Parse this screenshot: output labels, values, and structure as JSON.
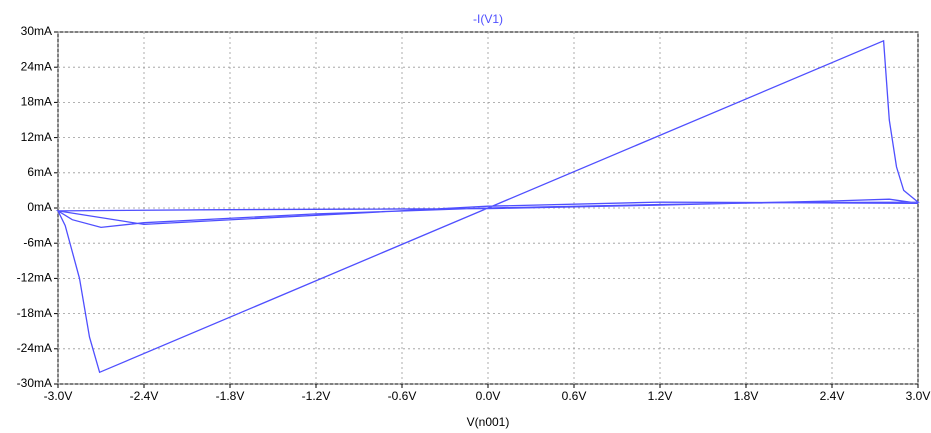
{
  "chart_data": {
    "type": "line",
    "x_label": "V(n001)",
    "x": [
      -3.0,
      -2.95,
      -2.85,
      -2.78,
      -2.71,
      0,
      2.76,
      2.8,
      2.85,
      2.9,
      3.0,
      2.0,
      1.2,
      0,
      -1.2,
      -2.4,
      -2.7,
      -2.9,
      -3.0,
      -2.0,
      -1.0,
      0,
      1.2,
      2.4,
      2.8,
      3.0,
      1.2,
      0,
      -2.4,
      -3.0
    ],
    "series": [
      {
        "name": "-I(V1)",
        "color": "#4f4fff",
        "values": [
          -0.5,
          -3,
          -12,
          -22,
          -28,
          0,
          28.5,
          15,
          7,
          3,
          1,
          0.9,
          0.6,
          0,
          -1,
          -2.5,
          -3.3,
          -2,
          -0.5,
          -0.3,
          -0.2,
          -0.1,
          0.5,
          1.2,
          1.5,
          0.8,
          1,
          0.3,
          -2.8,
          -0.5
        ]
      }
    ],
    "xlim": [
      -3,
      3
    ],
    "xticks": [
      {
        "value": -3,
        "label": "-3.0V"
      },
      {
        "value": -2.4,
        "label": "-2.4V"
      },
      {
        "value": -1.8,
        "label": "-1.8V"
      },
      {
        "value": -1.2,
        "label": "-1.2V"
      },
      {
        "value": -0.6,
        "label": "-0.6V"
      },
      {
        "value": 0,
        "label": "0.0V"
      },
      {
        "value": 0.6,
        "label": "0.6V"
      },
      {
        "value": 1.2,
        "label": "1.2V"
      },
      {
        "value": 1.8,
        "label": "1.8V"
      },
      {
        "value": 2.4,
        "label": "2.4V"
      },
      {
        "value": 3,
        "label": "3.0V"
      }
    ],
    "ylim": [
      -30,
      30
    ],
    "yticks": [
      {
        "value": 30,
        "label": "30mA"
      },
      {
        "value": 24,
        "label": "24mA"
      },
      {
        "value": 18,
        "label": "18mA"
      },
      {
        "value": 12,
        "label": "12mA"
      },
      {
        "value": 6,
        "label": "6mA"
      },
      {
        "value": 0,
        "label": "0mA"
      },
      {
        "value": -6,
        "label": "-6mA"
      },
      {
        "value": -12,
        "label": "-12mA"
      },
      {
        "value": -18,
        "label": "-18mA"
      },
      {
        "value": -24,
        "label": "-24mA"
      },
      {
        "value": -30,
        "label": "-30mA"
      }
    ],
    "grid": true
  }
}
